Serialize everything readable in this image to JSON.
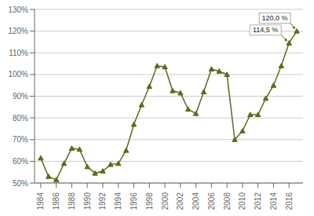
{
  "chart_data": {
    "type": "line",
    "x": [
      1984,
      1985,
      1986,
      1987,
      1988,
      1989,
      1990,
      1991,
      1992,
      1993,
      1994,
      1995,
      1996,
      1997,
      1998,
      1999,
      2000,
      2001,
      2002,
      2003,
      2004,
      2005,
      2006,
      2007,
      2008,
      2009,
      2010,
      2011,
      2012,
      2013,
      2014,
      2015,
      2016,
      2017
    ],
    "values": [
      61.5,
      53.0,
      51.5,
      59.0,
      66.0,
      65.5,
      57.5,
      54.5,
      55.5,
      58.5,
      59.0,
      65.0,
      77.0,
      86.0,
      94.5,
      104.0,
      103.5,
      92.5,
      91.5,
      84.0,
      82.0,
      92.0,
      102.5,
      101.5,
      100.0,
      70.0,
      74.0,
      81.5,
      81.5,
      89.0,
      95.0,
      104.0,
      114.5,
      120.0
    ],
    "color": "#5a6b1a",
    "marker": "triangle",
    "xlim": [
      1983.2,
      2017.8
    ],
    "xticks": [
      1984,
      1986,
      1988,
      1990,
      1992,
      1994,
      1996,
      1998,
      2000,
      2002,
      2004,
      2006,
      2008,
      2010,
      2012,
      2014,
      2016
    ],
    "ylim": [
      50,
      130
    ],
    "yticks": [
      {
        "value": 50,
        "label": "50%"
      },
      {
        "value": 60,
        "label": "60%"
      },
      {
        "value": 70,
        "label": "70%"
      },
      {
        "value": 80,
        "label": "80%"
      },
      {
        "value": 90,
        "label": "90%"
      },
      {
        "value": 100,
        "label": "100%"
      },
      {
        "value": 110,
        "label": "110%"
      },
      {
        "value": 120,
        "label": "120%"
      },
      {
        "value": 130,
        "label": "130%"
      }
    ],
    "grid": "y",
    "annotations": [
      {
        "text": "114,5 %",
        "x": 2016,
        "y": 114.5
      },
      {
        "text": "120,0 %",
        "x": 2017,
        "y": 120.0
      }
    ]
  }
}
